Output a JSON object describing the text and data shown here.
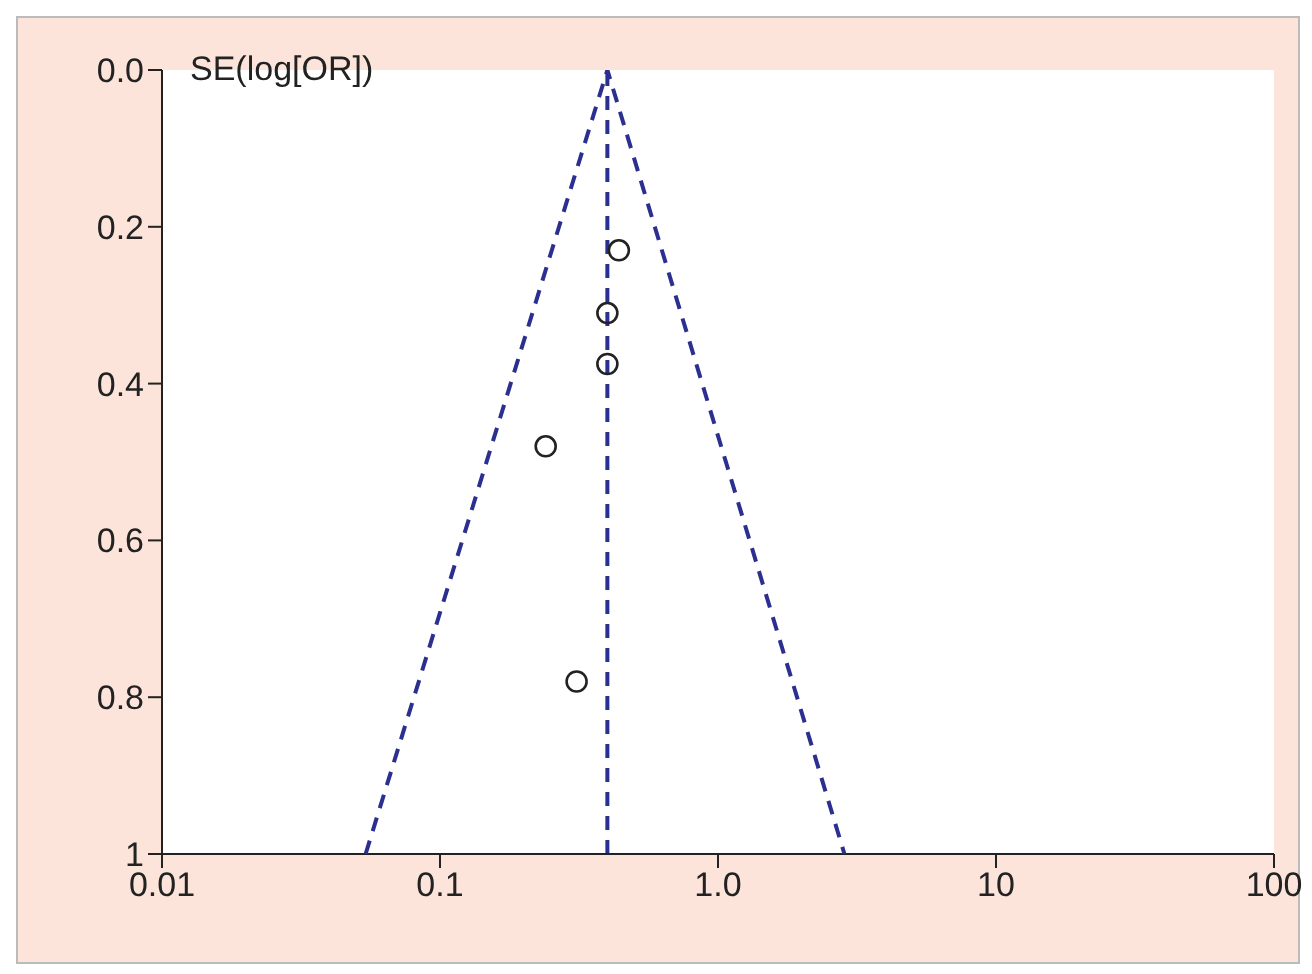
{
  "chart_data": {
    "type": "scatter",
    "ylabel": "SE(log[OR])",
    "log": "x",
    "grid": false,
    "marker": "circle",
    "xlim": [
      0.01,
      100
    ],
    "xticks": [
      0.01,
      0.1,
      {
        "value": 1,
        "label": "1.0"
      },
      10,
      100
    ],
    "ylim": [
      1,
      0
    ],
    "yticks": [
      {
        "value": 0,
        "label": "0.0"
      },
      0.2,
      0.4,
      0.6,
      0.8,
      1
    ],
    "series": [
      {
        "color": "#222222",
        "x": [
          0.44,
          0.4,
          0.4,
          0.24,
          0.31
        ],
        "values": [
          0.23,
          0.31,
          0.375,
          0.48,
          0.78
        ]
      },
      {
        "type": "line",
        "color": "#2b2f8f",
        "line_style": "dashed",
        "marker": "none",
        "x": [
          0.054,
          0.4,
          2.85
        ],
        "values": [
          1,
          0,
          1
        ]
      }
    ],
    "ref_lines": [
      {
        "axis": "x",
        "value": 0.4,
        "color": "#2b2f8f",
        "line_style": "dashed"
      }
    ]
  }
}
